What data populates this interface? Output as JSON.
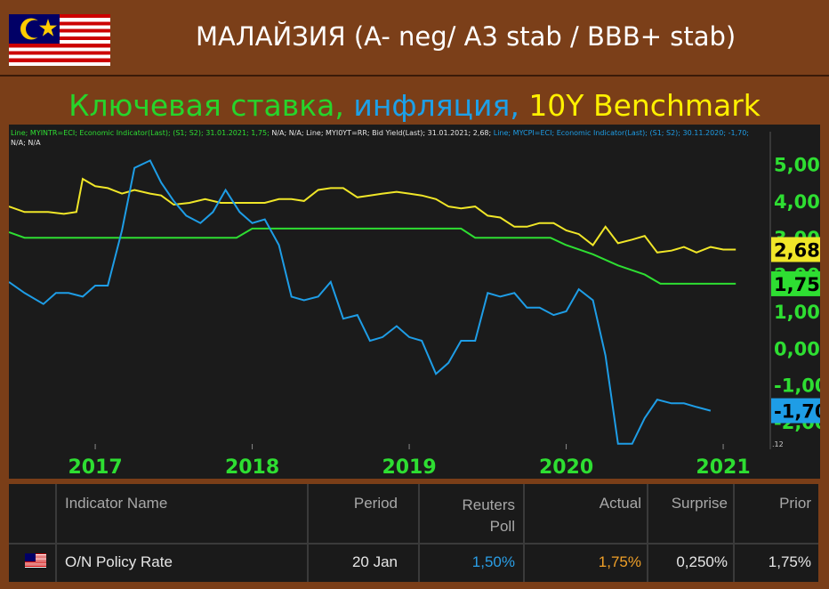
{
  "header": {
    "title": "МАЛАЙЗИЯ (A- neg/ A3 stab / BBB+ stab)",
    "subtitle_parts": [
      "Ключевая ставка,",
      "инфляция,",
      "10Y Benchmark"
    ]
  },
  "legend_line": {
    "part1": "Line; MYINTR=ECI; Economic Indicator(Last); (S1; S2); 31.01.2021; 1,75;",
    "part2": "N/A; N/A; Line; MYI0YT=RR; Bid Yield(Last); 31.01.2021; 2,68;",
    "part3": "Line; MYCPI=ECI; Economic Indicator(Last); (S1; S2); 30.11.2020; -1,70;",
    "part4": "N/A; N/A"
  },
  "chart_data": {
    "type": "line",
    "x_labels": [
      "2017",
      "2018",
      "2019",
      "2020",
      "2021"
    ],
    "y_ticks": [
      "5,00",
      "4,00",
      "3,00",
      "2,00",
      "1,00",
      "0,00",
      "-1,00",
      "-2,00"
    ],
    "y_tick_values": [
      5,
      4,
      3,
      2,
      1,
      0,
      -1,
      -2
    ],
    "ylim": [
      -2.75,
      5.4
    ],
    "xlim": [
      2016.45,
      2021.3
    ],
    "corner_label": ".12",
    "series": [
      {
        "ticker": "MYI0YT=RR",
        "color": "#f0e628",
        "last_label": "2,68",
        "points": [
          [
            2016.45,
            3.85
          ],
          [
            2016.55,
            3.7
          ],
          [
            2016.7,
            3.7
          ],
          [
            2016.8,
            3.65
          ],
          [
            2016.88,
            3.7
          ],
          [
            2016.92,
            4.6
          ],
          [
            2017.0,
            4.4
          ],
          [
            2017.08,
            4.35
          ],
          [
            2017.17,
            4.2
          ],
          [
            2017.25,
            4.3
          ],
          [
            2017.35,
            4.2
          ],
          [
            2017.42,
            4.15
          ],
          [
            2017.5,
            3.9
          ],
          [
            2017.6,
            3.95
          ],
          [
            2017.7,
            4.05
          ],
          [
            2017.8,
            3.95
          ],
          [
            2017.92,
            3.95
          ],
          [
            2018.0,
            3.95
          ],
          [
            2018.08,
            3.95
          ],
          [
            2018.17,
            4.05
          ],
          [
            2018.25,
            4.05
          ],
          [
            2018.33,
            4.0
          ],
          [
            2018.42,
            4.3
          ],
          [
            2018.5,
            4.35
          ],
          [
            2018.58,
            4.35
          ],
          [
            2018.67,
            4.1
          ],
          [
            2018.75,
            4.15
          ],
          [
            2018.83,
            4.2
          ],
          [
            2018.92,
            4.25
          ],
          [
            2019.0,
            4.2
          ],
          [
            2019.08,
            4.15
          ],
          [
            2019.17,
            4.05
          ],
          [
            2019.25,
            3.85
          ],
          [
            2019.33,
            3.8
          ],
          [
            2019.42,
            3.85
          ],
          [
            2019.5,
            3.6
          ],
          [
            2019.58,
            3.55
          ],
          [
            2019.67,
            3.3
          ],
          [
            2019.75,
            3.3
          ],
          [
            2019.83,
            3.4
          ],
          [
            2019.92,
            3.4
          ],
          [
            2020.0,
            3.2
          ],
          [
            2020.08,
            3.1
          ],
          [
            2020.17,
            2.8
          ],
          [
            2020.25,
            3.3
          ],
          [
            2020.33,
            2.85
          ],
          [
            2020.42,
            2.95
          ],
          [
            2020.5,
            3.05
          ],
          [
            2020.58,
            2.6
          ],
          [
            2020.67,
            2.65
          ],
          [
            2020.75,
            2.75
          ],
          [
            2020.83,
            2.6
          ],
          [
            2020.92,
            2.75
          ],
          [
            2021.0,
            2.68
          ],
          [
            2021.08,
            2.68
          ]
        ]
      },
      {
        "ticker": "MYINTR=ECI",
        "color": "#2ede32",
        "last_label": "1,75",
        "points": [
          [
            2016.45,
            3.15
          ],
          [
            2016.55,
            3.0
          ],
          [
            2017.0,
            3.0
          ],
          [
            2017.5,
            3.0
          ],
          [
            2017.9,
            3.0
          ],
          [
            2018.0,
            3.25
          ],
          [
            2018.5,
            3.25
          ],
          [
            2019.0,
            3.25
          ],
          [
            2019.33,
            3.25
          ],
          [
            2019.42,
            3.0
          ],
          [
            2019.9,
            3.0
          ],
          [
            2020.0,
            2.8
          ],
          [
            2020.17,
            2.55
          ],
          [
            2020.33,
            2.25
          ],
          [
            2020.5,
            2.0
          ],
          [
            2020.6,
            1.75
          ],
          [
            2021.08,
            1.75
          ]
        ]
      },
      {
        "ticker": "MYCPI=ECI",
        "color": "#1e9de6",
        "last_label": "-1,70",
        "points": [
          [
            2016.45,
            1.8
          ],
          [
            2016.55,
            1.5
          ],
          [
            2016.67,
            1.2
          ],
          [
            2016.75,
            1.5
          ],
          [
            2016.83,
            1.5
          ],
          [
            2016.92,
            1.4
          ],
          [
            2017.0,
            1.7
          ],
          [
            2017.08,
            1.7
          ],
          [
            2017.17,
            3.2
          ],
          [
            2017.25,
            4.9
          ],
          [
            2017.35,
            5.1
          ],
          [
            2017.42,
            4.5
          ],
          [
            2017.5,
            4.0
          ],
          [
            2017.58,
            3.6
          ],
          [
            2017.67,
            3.4
          ],
          [
            2017.75,
            3.7
          ],
          [
            2017.83,
            4.3
          ],
          [
            2017.92,
            3.7
          ],
          [
            2018.0,
            3.4
          ],
          [
            2018.08,
            3.5
          ],
          [
            2018.17,
            2.8
          ],
          [
            2018.25,
            1.4
          ],
          [
            2018.33,
            1.3
          ],
          [
            2018.42,
            1.4
          ],
          [
            2018.5,
            1.8
          ],
          [
            2018.58,
            0.8
          ],
          [
            2018.67,
            0.9
          ],
          [
            2018.75,
            0.2
          ],
          [
            2018.83,
            0.3
          ],
          [
            2018.92,
            0.6
          ],
          [
            2019.0,
            0.3
          ],
          [
            2019.08,
            0.2
          ],
          [
            2019.17,
            -0.7
          ],
          [
            2019.25,
            -0.4
          ],
          [
            2019.33,
            0.2
          ],
          [
            2019.42,
            0.2
          ],
          [
            2019.5,
            1.5
          ],
          [
            2019.58,
            1.4
          ],
          [
            2019.67,
            1.5
          ],
          [
            2019.75,
            1.1
          ],
          [
            2019.83,
            1.1
          ],
          [
            2019.92,
            0.9
          ],
          [
            2020.0,
            1.0
          ],
          [
            2020.08,
            1.6
          ],
          [
            2020.17,
            1.3
          ],
          [
            2020.25,
            -0.2
          ],
          [
            2020.33,
            -2.6
          ],
          [
            2020.42,
            -2.6
          ],
          [
            2020.5,
            -1.9
          ],
          [
            2020.58,
            -1.4
          ],
          [
            2020.67,
            -1.5
          ],
          [
            2020.75,
            -1.5
          ],
          [
            2020.83,
            -1.6
          ],
          [
            2020.92,
            -1.7
          ]
        ]
      }
    ]
  },
  "table": {
    "columns": [
      "Indicator Name",
      "Period",
      "Reuters Poll",
      "Actual",
      "Surprise",
      "Prior"
    ],
    "row": {
      "name": "O/N Policy Rate",
      "period": "20 Jan",
      "poll": "1,50%",
      "actual": "1,75%",
      "surprise": "0,250%",
      "prior": "1,75%"
    },
    "colors": {
      "poll": "#2a9ee6",
      "actual": "#f0a028"
    }
  }
}
